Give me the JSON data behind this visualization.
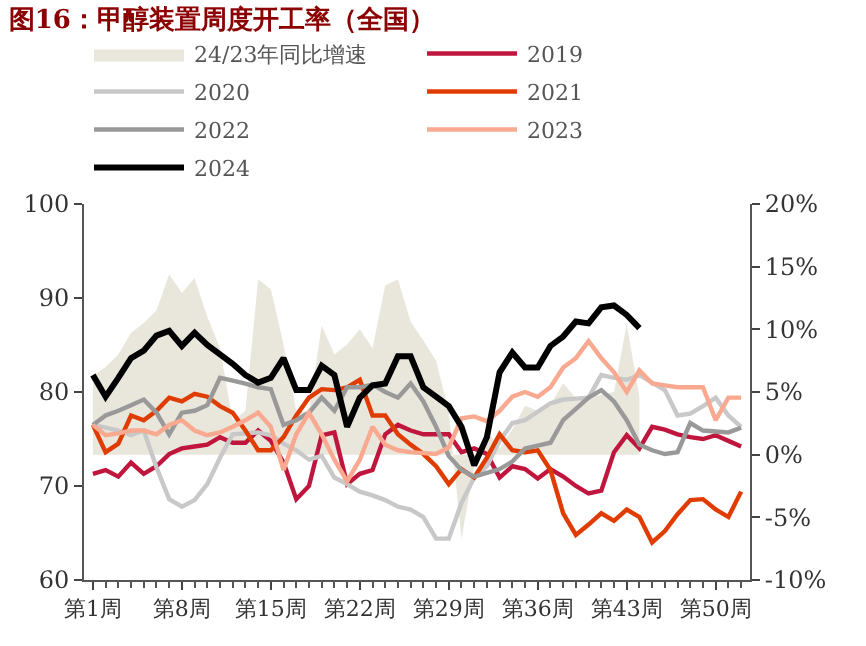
{
  "chart_data": {
    "type": "line",
    "title": "图16：甲醇装置周度开工率（全国）",
    "categories": [
      "第1周",
      null,
      null,
      null,
      null,
      null,
      null,
      "第8周",
      null,
      null,
      null,
      null,
      null,
      null,
      "第15周",
      null,
      null,
      null,
      null,
      null,
      null,
      "第22周",
      null,
      null,
      null,
      null,
      null,
      null,
      "第29周",
      null,
      null,
      null,
      null,
      null,
      null,
      "第36周",
      null,
      null,
      null,
      null,
      null,
      null,
      "第43周",
      null,
      null,
      null,
      null,
      null,
      null,
      "第50周",
      null,
      null
    ],
    "ylim": [
      60,
      100
    ],
    "yticks": [
      60,
      70,
      80,
      90,
      100
    ],
    "y2lim": [
      -10,
      20
    ],
    "y2ticks": [
      {
        "value": -10,
        "label": "-10%"
      },
      {
        "value": -5,
        "label": "-5%"
      },
      {
        "value": 0,
        "label": "0%"
      },
      {
        "value": 5,
        "label": "5%"
      },
      {
        "value": 10,
        "label": "10%"
      },
      {
        "value": 15,
        "label": "15%"
      },
      {
        "value": 20,
        "label": "20%"
      }
    ],
    "legend": "top",
    "marker": "none",
    "line_style": "solid",
    "series": [
      {
        "name": "24/23年同比增速",
        "type": "area",
        "axis": "y2",
        "color": "#e9e6dc",
        "values": [
          6.3,
          7,
          8,
          9.7,
          10.5,
          11.5,
          14.4,
          12.9,
          14.1,
          11,
          8.5,
          2.7,
          3.5,
          14,
          13.2,
          8.8,
          3.5,
          3.4,
          10.3,
          8,
          8.8,
          10,
          8.5,
          13.5,
          14,
          10.6,
          9.1,
          7.5,
          3.4,
          -6.7,
          -0.9,
          1.9,
          0.5,
          2,
          3.9,
          3.5,
          4,
          5.7,
          4.5,
          4.5,
          4.8,
          5,
          10.4,
          4.6,
          null,
          null,
          null,
          null,
          null,
          null,
          null,
          null
        ]
      },
      {
        "name": "2019",
        "color": "#c0163d",
        "values": [
          71.3,
          71.7,
          71,
          72.5,
          71.3,
          72.1,
          73.4,
          74,
          74.2,
          74.4,
          75.2,
          74.6,
          74.6,
          75.9,
          74.8,
          72.5,
          68.6,
          70,
          75.4,
          75.7,
          70.2,
          71.3,
          71.7,
          75.5,
          76.5,
          75.9,
          75.5,
          75.5,
          75.5,
          73.6,
          74,
          73.4,
          70.9,
          72.1,
          71.8,
          70.8,
          71.8,
          71,
          70,
          69.2,
          69.5,
          73.6,
          75.4,
          74,
          76.3,
          76,
          75.5,
          75.2,
          75,
          75.4,
          74.8,
          74.2
        ]
      },
      {
        "name": "2020",
        "color": "#c8c8c8",
        "values": [
          76.5,
          76.2,
          75.9,
          75.4,
          75.9,
          72,
          68.6,
          67.8,
          68.5,
          70.2,
          73,
          75.5,
          75.6,
          75.7,
          75.4,
          74.5,
          73.8,
          72.8,
          73.2,
          70.9,
          70.2,
          69.4,
          69,
          68.5,
          67.8,
          67.5,
          66.7,
          64.4,
          64.4,
          68.2,
          70.9,
          72.1,
          74.8,
          76.7,
          77,
          77.9,
          78.8,
          79.2,
          79.3,
          79.4,
          81.8,
          81.5,
          81.3,
          81.8,
          81,
          80.2,
          77.5,
          77.7,
          78.5,
          79.4,
          77.5,
          76.3
        ]
      },
      {
        "name": "2021",
        "color": "#e03c00",
        "values": [
          76.5,
          73.6,
          74.5,
          77.5,
          77,
          78,
          79.4,
          79,
          79.8,
          79.5,
          78.5,
          77.8,
          75.9,
          73.8,
          73.8,
          75.2,
          77.5,
          79.4,
          80.3,
          80.2,
          80.5,
          81.3,
          77.5,
          77.5,
          75.5,
          74.4,
          73.4,
          72.1,
          70.2,
          71.8,
          70.9,
          73,
          75.5,
          73.8,
          73.6,
          73.8,
          71.7,
          67.1,
          64.8,
          65.9,
          67.1,
          66.3,
          67.5,
          66.7,
          64,
          65.2,
          67,
          68.5,
          68.6,
          67.5,
          66.7,
          69.4
        ]
      },
      {
        "name": "2022",
        "color": "#999999",
        "values": [
          76.5,
          77.5,
          78,
          78.6,
          79.2,
          77.8,
          75.5,
          77.8,
          78,
          78.6,
          81.5,
          81.2,
          80.9,
          80.5,
          80.3,
          76.5,
          77,
          77.8,
          79.4,
          78,
          80.5,
          80.5,
          80.8,
          80,
          79.4,
          80.9,
          79,
          76.3,
          73.2,
          71.7,
          71,
          71.4,
          71.8,
          72.6,
          74,
          74.3,
          74.6,
          77,
          78.2,
          79.4,
          80.2,
          79,
          77,
          74.4,
          73.8,
          73.4,
          73.6,
          76.7,
          75.9,
          75.8,
          75.7,
          76.2
        ]
      },
      {
        "name": "2023",
        "color": "#f8a98f",
        "values": [
          76.5,
          75.4,
          75.6,
          75.9,
          75.9,
          75.5,
          76.5,
          77,
          75.9,
          75.4,
          75.7,
          76.3,
          77,
          77.8,
          76.3,
          71.7,
          75.5,
          77.8,
          75.5,
          72.8,
          70.5,
          72.8,
          76.3,
          74.4,
          73.8,
          73.6,
          73.5,
          73.4,
          74.1,
          77.2,
          77.4,
          76.9,
          78,
          79.5,
          80,
          79.5,
          80.5,
          82.6,
          83.6,
          85.4,
          83.6,
          82.1,
          80,
          82.3,
          80.9,
          80.7,
          80.5,
          80.5,
          80.5,
          77,
          79.4,
          79.4
        ]
      },
      {
        "name": "2024",
        "color": "#000000",
        "values": [
          81.8,
          79.5,
          81.5,
          83.6,
          84.4,
          86,
          86.5,
          84.9,
          86.3,
          85,
          84,
          83,
          81.8,
          81,
          81.5,
          83.6,
          80.2,
          80.2,
          82.8,
          81.8,
          76.3,
          79.4,
          80.7,
          80.9,
          83.8,
          83.8,
          80.5,
          79.5,
          78.5,
          76.3,
          72.2,
          75.2,
          82.1,
          84.2,
          82.6,
          82.6,
          84.9,
          85.9,
          87.5,
          87.3,
          89,
          89.2,
          88.2,
          86.8,
          null,
          null,
          null,
          null,
          null,
          null,
          null,
          null
        ]
      }
    ]
  }
}
